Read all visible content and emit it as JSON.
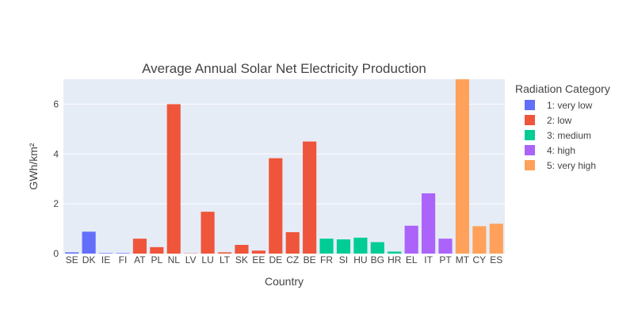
{
  "chart_data": {
    "type": "bar",
    "title": "Average Annual Solar Net Electricity Production",
    "xlabel": "Country",
    "ylabel": "GWh/km²",
    "ylim": [
      0,
      7
    ],
    "yticks": [
      0,
      2,
      4,
      6
    ],
    "grid": true,
    "legend_position": "right",
    "legend_title": "Radiation Category",
    "categories": [
      "SE",
      "DK",
      "IE",
      "FI",
      "AT",
      "PL",
      "NL",
      "LV",
      "LU",
      "LT",
      "SK",
      "EE",
      "DE",
      "CZ",
      "BE",
      "FR",
      "SI",
      "HU",
      "BG",
      "HR",
      "EL",
      "IT",
      "PT",
      "MT",
      "CY",
      "ES"
    ],
    "series": [
      {
        "name": "1: very low",
        "color": "#636efa",
        "values": [
          0.05,
          0.88,
          0.02,
          0.02,
          null,
          null,
          null,
          null,
          null,
          null,
          null,
          null,
          null,
          null,
          null,
          null,
          null,
          null,
          null,
          null,
          null,
          null,
          null,
          null,
          null,
          null
        ]
      },
      {
        "name": "2: low",
        "color": "#ef553b",
        "values": [
          null,
          null,
          null,
          null,
          0.6,
          0.26,
          6.0,
          0.01,
          1.68,
          0.05,
          0.35,
          0.12,
          3.83,
          0.86,
          4.5,
          null,
          null,
          null,
          null,
          null,
          null,
          null,
          null,
          null,
          null,
          null
        ]
      },
      {
        "name": "3: medium",
        "color": "#00cc96",
        "values": [
          null,
          null,
          null,
          null,
          null,
          null,
          null,
          null,
          null,
          null,
          null,
          null,
          null,
          null,
          null,
          0.6,
          0.57,
          0.64,
          0.46,
          0.08,
          null,
          null,
          null,
          null,
          null,
          null
        ]
      },
      {
        "name": "4: high",
        "color": "#ab63fa",
        "values": [
          null,
          null,
          null,
          null,
          null,
          null,
          null,
          null,
          null,
          null,
          null,
          null,
          null,
          null,
          null,
          null,
          null,
          null,
          null,
          null,
          1.12,
          2.42,
          0.6,
          null,
          null,
          null
        ]
      },
      {
        "name": "5: very high",
        "color": "#ffa15a",
        "values": [
          null,
          null,
          null,
          null,
          null,
          null,
          null,
          null,
          null,
          null,
          null,
          null,
          null,
          null,
          null,
          null,
          null,
          null,
          null,
          null,
          null,
          null,
          null,
          7.2,
          1.1,
          1.2
        ]
      }
    ]
  }
}
